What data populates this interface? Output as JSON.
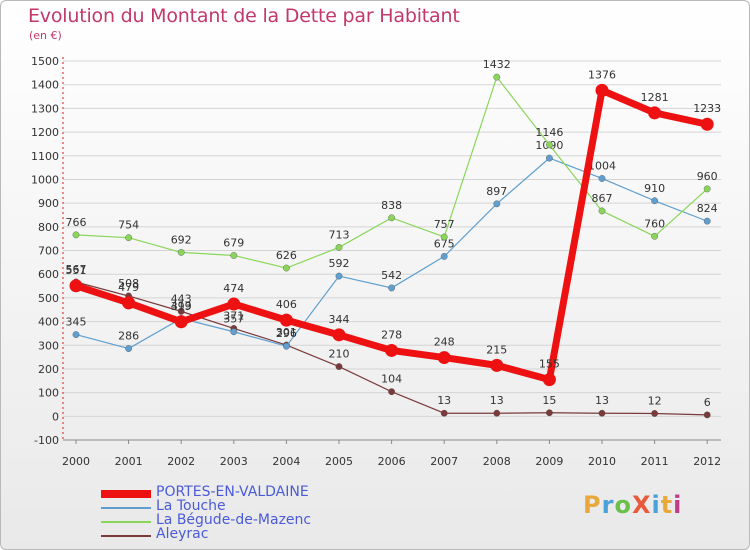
{
  "title": "Evolution du Montant de la Dette par Habitant",
  "subtitle": "(en €)",
  "logo": {
    "text": "ProXiti",
    "colors": [
      "#e8a93a",
      "#4aa3d8",
      "#6cc04a",
      "#e85a3a",
      "#4aa3d8",
      "#e8a93a",
      "#c23a8a"
    ]
  },
  "chart_data": {
    "type": "line",
    "title": "Evolution du Montant de la Dette par Habitant",
    "subtitle": "(en €)",
    "categories": [
      "2000",
      "2001",
      "2002",
      "2003",
      "2004",
      "2005",
      "2006",
      "2007",
      "2008",
      "2009",
      "2010",
      "2011",
      "2012"
    ],
    "ylim": [
      -100,
      1500
    ],
    "yticks": [
      -100,
      0,
      100,
      200,
      300,
      400,
      500,
      600,
      700,
      800,
      900,
      1000,
      1100,
      1200,
      1300,
      1400,
      1500
    ],
    "grid": "horizontal",
    "legend_position": "bottom-left",
    "series": [
      {
        "name": "PORTES-EN-VALDAINE",
        "color": "#ee1111",
        "values": [
          551,
          479,
          399,
          474,
          406,
          344,
          278,
          248,
          215,
          155,
          1376,
          1281,
          1233
        ],
        "labels": [
          "551",
          "479",
          "399",
          "474",
          "406",
          "344",
          "278",
          "248",
          "215",
          "155",
          "1376",
          "1281",
          "1233"
        ]
      },
      {
        "name": "La Touche",
        "color": "#5f9fd0",
        "values": [
          345,
          286,
          413,
          357,
          296,
          592,
          542,
          675,
          897,
          1090,
          1004,
          910,
          824
        ],
        "labels": [
          "345",
          "286",
          "413",
          "357",
          "296",
          "592",
          "542",
          "675",
          "897",
          "1090",
          "1004",
          "910",
          "824"
        ]
      },
      {
        "name": "La Bégude-de-Mazenc",
        "color": "#8ad65a",
        "values": [
          766,
          754,
          692,
          679,
          626,
          713,
          838,
          757,
          1432,
          1146,
          867,
          760,
          960
        ],
        "labels": [
          "766",
          "754",
          "692",
          "679",
          "626",
          "713",
          "838",
          "757",
          "1432",
          "1146",
          "867",
          "760",
          "960"
        ]
      },
      {
        "name": "Aleyrac",
        "color": "#7a3a3a",
        "values": [
          567,
          508,
          443,
          371,
          301,
          210,
          104,
          13,
          13,
          15,
          13,
          12,
          6
        ],
        "labels": [
          "567",
          "508",
          "443",
          "371",
          "301",
          "210",
          "104",
          "13",
          "13",
          "15",
          "13",
          "12",
          "6"
        ]
      }
    ]
  }
}
